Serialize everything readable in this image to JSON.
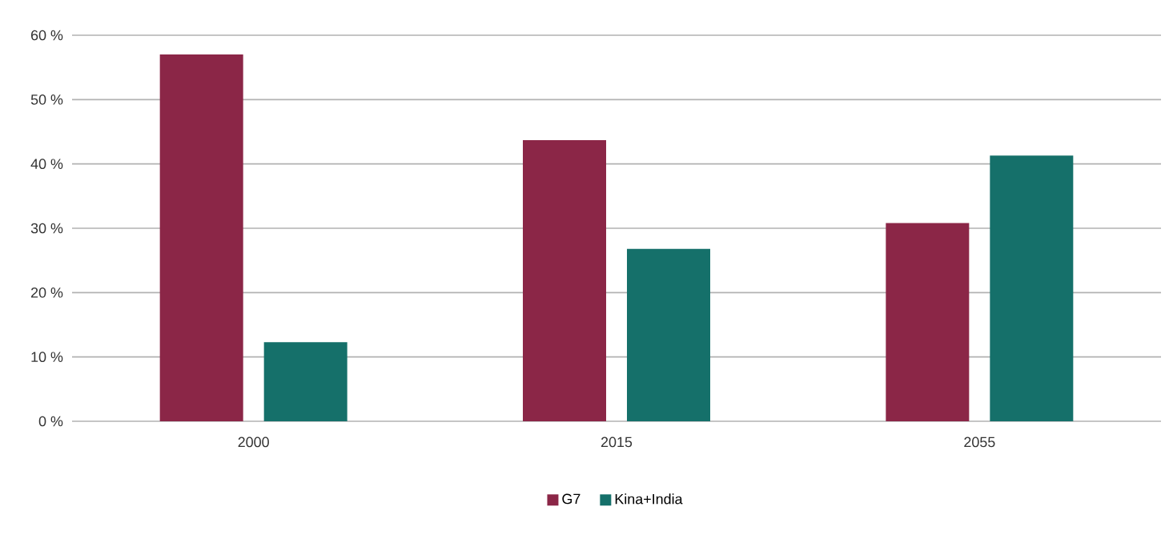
{
  "chart_data": {
    "type": "bar",
    "categories": [
      "2000",
      "2015",
      "2055"
    ],
    "series": [
      {
        "name": "G7",
        "color": "#8b2647",
        "values": [
          57.0,
          43.7,
          30.8
        ]
      },
      {
        "name": "Kina+India",
        "color": "#15706a",
        "values": [
          12.3,
          26.8,
          41.3
        ]
      }
    ],
    "ylim": [
      0,
      60
    ],
    "yticks": [
      {
        "value": 0,
        "label": "0 %"
      },
      {
        "value": 10,
        "label": "10 %"
      },
      {
        "value": 20,
        "label": "20 %"
      },
      {
        "value": 30,
        "label": "30 %"
      },
      {
        "value": 40,
        "label": "40 %"
      },
      {
        "value": 50,
        "label": "50 %"
      },
      {
        "value": 60,
        "label": "60 %"
      }
    ],
    "grid": "y",
    "legend": "bottom"
  }
}
